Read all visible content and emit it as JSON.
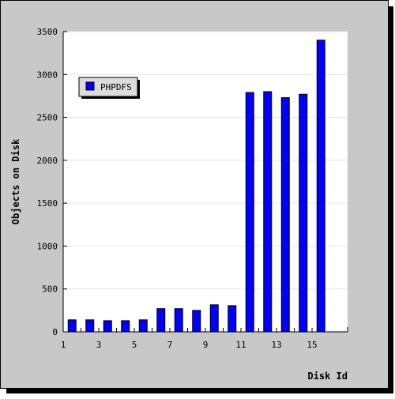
{
  "colors": {
    "page_background": "#c8c8c8",
    "plot_background": "#ffffff",
    "bar_fill": "#0000ff",
    "bar_stroke": "#000000",
    "grid": "#e6e6e6",
    "legend_background": "#dcdcdc",
    "shadow": "#000000"
  },
  "chart_data": {
    "type": "bar",
    "title": "",
    "xlabel": "Disk Id",
    "ylabel": "Objects on Disk",
    "categories": [
      1,
      2,
      3,
      4,
      5,
      6,
      7,
      8,
      9,
      10,
      11,
      12,
      13,
      14,
      15
    ],
    "x_tick_labels": [
      "1",
      "3",
      "5",
      "7",
      "9",
      "11",
      "13",
      "15"
    ],
    "xlim": [
      1,
      17
    ],
    "ylim": [
      0,
      3500
    ],
    "y_ticks": [
      0,
      500,
      1000,
      1500,
      2000,
      2500,
      3000,
      3500
    ],
    "grid": "horizontal",
    "legend_position": "top-left",
    "series": [
      {
        "name": "PHPDFS",
        "color": "#0000ff",
        "values": [
          140,
          140,
          130,
          130,
          140,
          270,
          270,
          250,
          315,
          305,
          2790,
          2800,
          2730,
          2770,
          3400
        ]
      }
    ]
  }
}
